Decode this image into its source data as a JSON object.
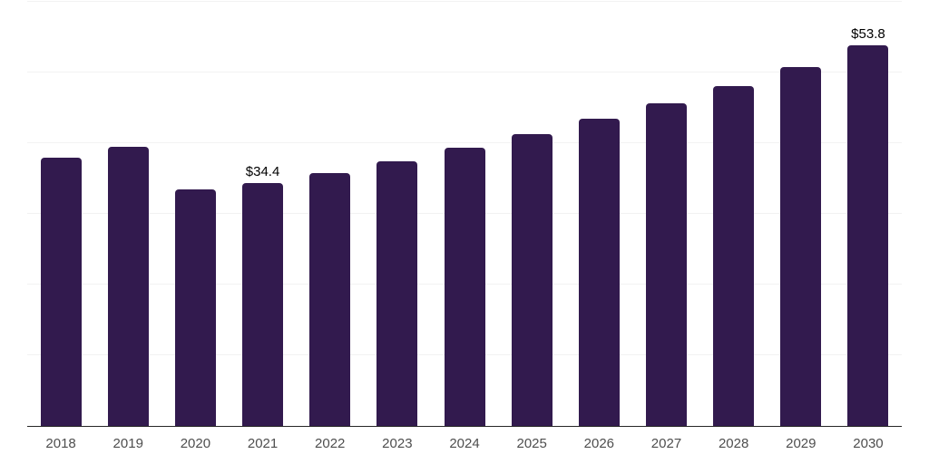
{
  "chart_data": {
    "type": "bar",
    "title": "",
    "xlabel": "",
    "ylabel": "",
    "categories": [
      "2018",
      "2019",
      "2020",
      "2021",
      "2022",
      "2023",
      "2024",
      "2025",
      "2026",
      "2027",
      "2028",
      "2029",
      "2030"
    ],
    "values": [
      37.9,
      39.5,
      33.5,
      34.4,
      35.8,
      37.5,
      39.3,
      41.3,
      43.4,
      45.6,
      48.1,
      50.8,
      53.8
    ],
    "data_labels": [
      "",
      "",
      "",
      "$34.4",
      "",
      "",
      "",
      "",
      "",
      "",
      "",
      "",
      "$53.8"
    ],
    "ylim": [
      0,
      60
    ],
    "grid_step": 10,
    "grid": true,
    "legend": false,
    "y_axis_labels_visible": false
  },
  "colors": {
    "bar": "#321a4e",
    "grid_line": "#f2f2f2",
    "axis_line": "#262626",
    "tick_label": "#4e4e4e",
    "data_label": "#000000",
    "background": "#ffffff"
  }
}
